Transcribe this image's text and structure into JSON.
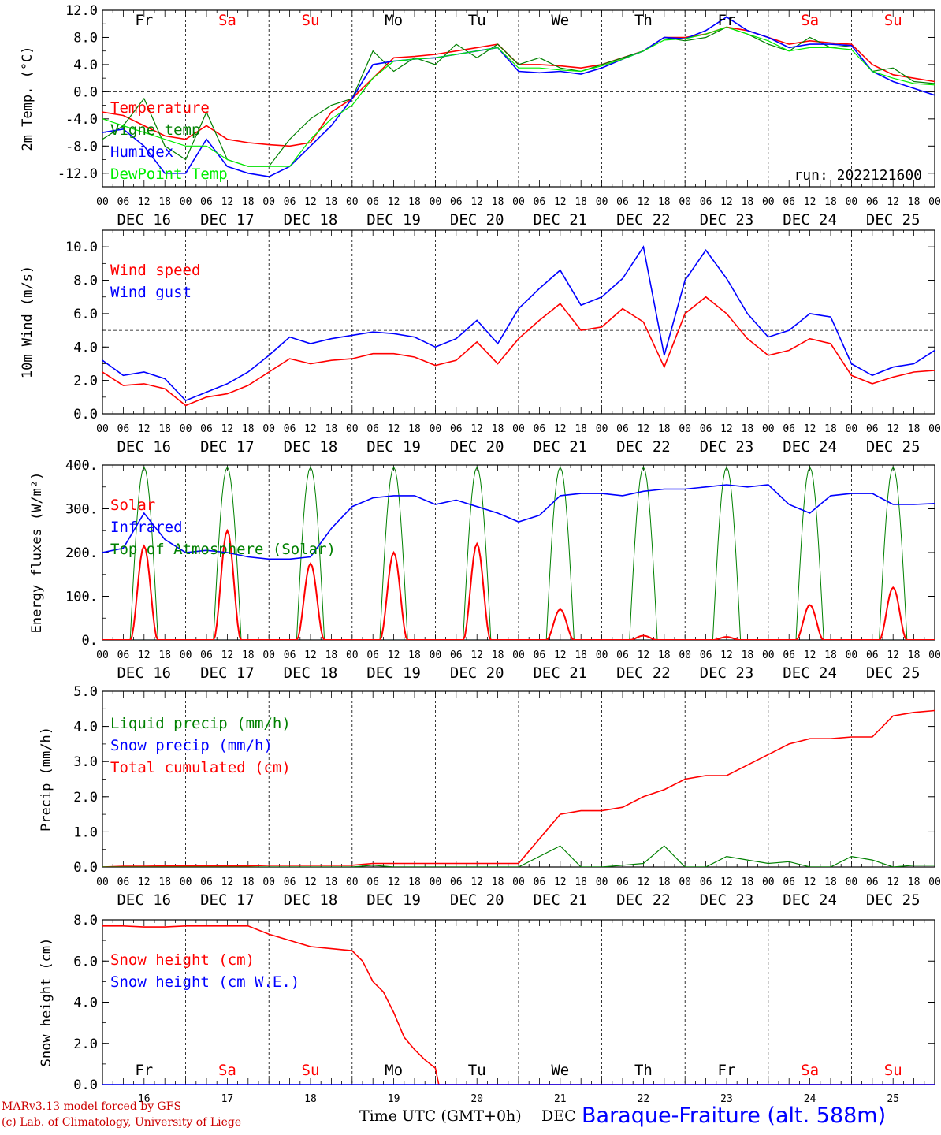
{
  "chart_data": [
    {
      "id": "temp",
      "type": "line",
      "ylabel": "2m Temp. (°C)",
      "ylim": [
        -14,
        12
      ],
      "yticks": [
        12.0,
        8.0,
        4.0,
        0.0,
        -4.0,
        -8.0,
        -12.0
      ],
      "ytick_labels": [
        "12.0",
        "8.0",
        "4.0",
        "0.0",
        "-4.0",
        "-8.0",
        "-12.0"
      ],
      "dashed_line": 0,
      "legend": [
        {
          "label": "Temperature",
          "color": "#ff0000"
        },
        {
          "label": "Vigne temp",
          "color": "#008000"
        },
        {
          "label": "Humidex",
          "color": "#0000ff"
        },
        {
          "label": "DewPoint Temp",
          "color": "#00ee00"
        }
      ],
      "annotation": "run: 2022121600",
      "series": [
        {
          "name": "Temperature",
          "color": "#ff0000",
          "x": [
            0,
            6,
            12,
            18,
            24,
            30,
            36,
            42,
            48,
            54,
            60,
            66,
            72,
            78,
            84,
            90,
            96,
            102,
            108,
            114,
            120,
            126,
            132,
            138,
            144,
            150,
            156,
            162,
            168,
            174,
            180,
            186,
            192,
            198,
            204,
            210,
            216,
            222,
            228,
            234,
            240
          ],
          "y": [
            -3,
            -3.5,
            -5,
            -6.5,
            -7,
            -5,
            -7,
            -7.5,
            -7.8,
            -8,
            -7.5,
            -3,
            -1,
            2,
            5,
            5.2,
            5.5,
            6,
            6.5,
            7,
            4,
            4,
            3.8,
            3.5,
            4,
            5,
            6,
            8,
            8,
            8.5,
            9.5,
            9,
            8,
            7,
            7.5,
            7.2,
            7,
            4,
            2.5,
            2,
            1.5
          ]
        },
        {
          "name": "Vigne temp",
          "color": "#008000",
          "x": [
            0,
            6,
            12,
            18,
            24,
            30,
            36,
            42,
            48,
            54,
            60,
            66,
            72,
            78,
            84,
            90,
            96,
            102,
            108,
            114,
            120,
            126,
            132,
            138,
            144,
            150,
            156,
            162,
            168,
            174,
            180,
            186,
            192,
            198,
            204,
            210,
            216,
            222,
            228,
            234,
            240
          ],
          "y": [
            -7,
            -5,
            -1,
            -8,
            -10,
            -3,
            -10,
            -11,
            -11,
            -7,
            -4,
            -2,
            -1,
            6,
            3,
            5,
            4,
            7,
            5,
            7,
            4,
            5,
            3.5,
            3,
            4,
            5,
            6,
            8,
            7.5,
            8,
            9.5,
            8.5,
            7,
            6,
            8,
            6.5,
            6.8,
            3,
            3.5,
            1.5,
            1.2
          ]
        },
        {
          "name": "Humidex",
          "color": "#0000ff",
          "x": [
            0,
            6,
            12,
            18,
            24,
            30,
            36,
            42,
            48,
            54,
            60,
            66,
            72,
            78,
            84,
            90,
            96,
            102,
            108,
            114,
            120,
            126,
            132,
            138,
            144,
            150,
            156,
            162,
            168,
            174,
            180,
            186,
            192,
            198,
            204,
            210,
            216,
            222,
            228,
            234,
            240
          ],
          "y": [
            -6,
            -5.5,
            -8,
            -12,
            -12,
            -7,
            -11,
            -12,
            -12.5,
            -11,
            -8,
            -5,
            -1,
            4,
            4.5,
            4.8,
            5,
            5.5,
            6,
            6.5,
            3,
            2.8,
            3,
            2.6,
            3.5,
            4.8,
            6,
            8,
            7.8,
            9,
            11,
            9,
            8,
            6.5,
            7,
            7,
            6.8,
            3,
            1.5,
            0.5,
            -0.5
          ]
        },
        {
          "name": "DewPoint Temp",
          "color": "#00ee00",
          "x": [
            0,
            6,
            12,
            18,
            24,
            30,
            36,
            42,
            48,
            54,
            60,
            66,
            72,
            78,
            84,
            90,
            96,
            102,
            108,
            114,
            120,
            126,
            132,
            138,
            144,
            150,
            156,
            162,
            168,
            174,
            180,
            186,
            192,
            198,
            204,
            210,
            216,
            222,
            228,
            234,
            240
          ],
          "y": [
            -4,
            -5,
            -6,
            -7,
            -8,
            -8,
            -10,
            -11,
            -11,
            -11,
            -7,
            -4,
            -2,
            2,
            4.5,
            4.8,
            5,
            5.5,
            6,
            6.5,
            3.5,
            3.5,
            3.2,
            3,
            3.8,
            4.8,
            6,
            7.6,
            7.8,
            8.5,
            9.5,
            8.5,
            7.5,
            6,
            6.5,
            6.5,
            6.2,
            3,
            2,
            1.2,
            1
          ]
        }
      ]
    },
    {
      "id": "wind",
      "type": "line",
      "ylabel": "10m Wind (m/s)",
      "ylim": [
        0,
        11
      ],
      "yticks": [
        10.0,
        8.0,
        6.0,
        4.0,
        2.0,
        0.0
      ],
      "ytick_labels": [
        "10.0",
        "8.0",
        "6.0",
        "4.0",
        "2.0",
        "0.0"
      ],
      "dashed_line": 5,
      "legend": [
        {
          "label": "Wind speed",
          "color": "#ff0000"
        },
        {
          "label": "Wind gust",
          "color": "#0000ff"
        }
      ],
      "series": [
        {
          "name": "Wind speed",
          "color": "#ff0000",
          "x": [
            0,
            6,
            12,
            18,
            24,
            30,
            36,
            42,
            48,
            54,
            60,
            66,
            72,
            78,
            84,
            90,
            96,
            102,
            108,
            114,
            120,
            126,
            132,
            138,
            144,
            150,
            156,
            162,
            168,
            174,
            180,
            186,
            192,
            198,
            204,
            210,
            216,
            222,
            228,
            234,
            240
          ],
          "y": [
            2.5,
            1.7,
            1.8,
            1.5,
            0.5,
            1.0,
            1.2,
            1.7,
            2.5,
            3.3,
            3.0,
            3.2,
            3.3,
            3.6,
            3.6,
            3.4,
            2.9,
            3.2,
            4.3,
            3.0,
            4.5,
            5.6,
            6.6,
            5.0,
            5.2,
            6.3,
            5.5,
            2.8,
            6.0,
            7.0,
            6.0,
            4.5,
            3.5,
            3.8,
            4.5,
            4.2,
            2.3,
            1.8,
            2.2,
            2.5,
            2.6
          ]
        },
        {
          "name": "Wind gust",
          "color": "#0000ff",
          "x": [
            0,
            6,
            12,
            18,
            24,
            30,
            36,
            42,
            48,
            54,
            60,
            66,
            72,
            78,
            84,
            90,
            96,
            102,
            108,
            114,
            120,
            126,
            132,
            138,
            144,
            150,
            156,
            162,
            168,
            174,
            180,
            186,
            192,
            198,
            204,
            210,
            216,
            222,
            228,
            234,
            240
          ],
          "y": [
            3.2,
            2.3,
            2.5,
            2.1,
            0.8,
            1.3,
            1.8,
            2.5,
            3.5,
            4.6,
            4.2,
            4.5,
            4.7,
            4.9,
            4.8,
            4.6,
            4.0,
            4.5,
            5.6,
            4.2,
            6.3,
            7.5,
            8.6,
            6.5,
            7.0,
            8.1,
            10.0,
            3.5,
            8.0,
            9.8,
            8.1,
            6.0,
            4.6,
            5.0,
            6.0,
            5.8,
            3.0,
            2.3,
            2.8,
            3.0,
            3.8
          ]
        }
      ]
    },
    {
      "id": "flux",
      "type": "line",
      "ylabel": "Energy fluxes (W/m²)",
      "ylim": [
        0,
        400
      ],
      "yticks": [
        400,
        300,
        200,
        100,
        0
      ],
      "ytick_labels": [
        "400.",
        "300.",
        "200.",
        "100.",
        "0."
      ],
      "legend": [
        {
          "label": "Solar",
          "color": "#ff0000"
        },
        {
          "label": "Infrared",
          "color": "#0000ff"
        },
        {
          "label": "Top of Atmosphere (Solar)",
          "color": "#008000"
        }
      ],
      "solar_noon_peaks": [
        215,
        250,
        175,
        200,
        220,
        70,
        10,
        7,
        80,
        120
      ],
      "toa_peak": 395,
      "day_window_hours": [
        8,
        16
      ],
      "series": [
        {
          "name": "Infrared",
          "color": "#0000ff",
          "x": [
            0,
            6,
            12,
            18,
            24,
            30,
            36,
            42,
            48,
            54,
            60,
            66,
            72,
            78,
            84,
            90,
            96,
            102,
            108,
            114,
            120,
            126,
            132,
            138,
            144,
            150,
            156,
            162,
            168,
            174,
            180,
            186,
            192,
            198,
            204,
            210,
            216,
            222,
            228,
            234,
            240
          ],
          "y": [
            200,
            210,
            290,
            230,
            200,
            205,
            200,
            190,
            185,
            185,
            190,
            255,
            305,
            325,
            330,
            330,
            310,
            320,
            305,
            290,
            270,
            285,
            330,
            335,
            335,
            330,
            340,
            345,
            345,
            350,
            355,
            350,
            355,
            310,
            290,
            330,
            335,
            335,
            310,
            310,
            312
          ]
        }
      ]
    },
    {
      "id": "precip",
      "type": "line",
      "ylabel": "Precip (mm/h)",
      "ylim": [
        0,
        5
      ],
      "yticks": [
        5.0,
        4.0,
        3.0,
        2.0,
        1.0,
        0.0
      ],
      "ytick_labels": [
        "5.0",
        "4.0",
        "3.0",
        "2.0",
        "1.0",
        "0.0"
      ],
      "legend": [
        {
          "label": "Liquid precip (mm/h)",
          "color": "#008000"
        },
        {
          "label": "Snow precip (mm/h)",
          "color": "#0000ff"
        },
        {
          "label": "Total cumulated (cm)",
          "color": "#ff0000"
        }
      ],
      "series": [
        {
          "name": "Total cumulated (cm)",
          "color": "#ff0000",
          "x": [
            0,
            6,
            12,
            18,
            24,
            30,
            36,
            42,
            48,
            54,
            60,
            66,
            72,
            78,
            84,
            90,
            96,
            102,
            108,
            114,
            120,
            126,
            132,
            138,
            144,
            150,
            156,
            162,
            168,
            174,
            180,
            186,
            192,
            198,
            204,
            210,
            216,
            222,
            228,
            234,
            240
          ],
          "y": [
            0,
            0.02,
            0.02,
            0.03,
            0.03,
            0.03,
            0.03,
            0.03,
            0.05,
            0.05,
            0.05,
            0.05,
            0.05,
            0.1,
            0.1,
            0.1,
            0.1,
            0.1,
            0.1,
            0.1,
            0.1,
            0.8,
            1.5,
            1.6,
            1.6,
            1.7,
            2.0,
            2.2,
            2.5,
            2.6,
            2.6,
            2.9,
            3.2,
            3.5,
            3.65,
            3.65,
            3.7,
            3.7,
            4.3,
            4.4,
            4.45
          ]
        },
        {
          "name": "Liquid precip (mm/h)",
          "color": "#008000",
          "x": [
            0,
            6,
            12,
            18,
            24,
            30,
            36,
            42,
            48,
            54,
            60,
            66,
            72,
            78,
            84,
            90,
            96,
            102,
            108,
            114,
            120,
            126,
            132,
            138,
            144,
            150,
            156,
            162,
            168,
            174,
            180,
            186,
            192,
            198,
            204,
            210,
            216,
            222,
            228,
            234,
            240
          ],
          "y": [
            0,
            0,
            0,
            0,
            0,
            0,
            0,
            0,
            0,
            0,
            0,
            0,
            0,
            0.05,
            0,
            0,
            0,
            0,
            0,
            0,
            0,
            0.3,
            0.6,
            0,
            0,
            0.05,
            0.1,
            0.6,
            0,
            0,
            0.3,
            0.2,
            0.1,
            0.15,
            0,
            0,
            0.3,
            0.2,
            0,
            0.05,
            0.05
          ]
        }
      ]
    },
    {
      "id": "snow",
      "type": "line",
      "ylabel": "Snow height (cm)",
      "ylim": [
        0,
        8
      ],
      "yticks": [
        8.0,
        6.0,
        4.0,
        2.0,
        0.0
      ],
      "ytick_labels": [
        "8.0",
        "6.0",
        "4.0",
        "2.0",
        "0.0"
      ],
      "legend": [
        {
          "label": "Snow height (cm)",
          "color": "#ff0000"
        },
        {
          "label": "Snow height (cm W.E.)",
          "color": "#0000ff"
        }
      ],
      "series": [
        {
          "name": "Snow height (cm)",
          "color": "#ff0000",
          "x": [
            0,
            6,
            12,
            18,
            24,
            30,
            36,
            42,
            48,
            54,
            60,
            66,
            72,
            75,
            78,
            81,
            84,
            87,
            90,
            93,
            96,
            97,
            98,
            240
          ],
          "y": [
            7.7,
            7.7,
            7.65,
            7.65,
            7.7,
            7.7,
            7.7,
            7.7,
            7.3,
            7.0,
            6.7,
            6.6,
            6.5,
            6.0,
            5.0,
            4.5,
            3.5,
            2.3,
            1.7,
            1.2,
            0.8,
            0.0,
            0.0,
            0.0
          ]
        },
        {
          "name": "Snow height (cm W.E.)",
          "color": "#0000ff",
          "x": [
            0,
            240
          ],
          "y": [
            0,
            0
          ]
        }
      ]
    }
  ],
  "day_labels_top": [
    {
      "label": "Fr",
      "color": "#000000"
    },
    {
      "label": "Sa",
      "color": "#ff0000"
    },
    {
      "label": "Su",
      "color": "#ff0000"
    },
    {
      "label": "Mo",
      "color": "#000000"
    },
    {
      "label": "Tu",
      "color": "#000000"
    },
    {
      "label": "We",
      "color": "#000000"
    },
    {
      "label": "Th",
      "color": "#000000"
    },
    {
      "label": "Fr",
      "color": "#000000"
    },
    {
      "label": "Sa",
      "color": "#ff0000"
    },
    {
      "label": "Su",
      "color": "#ff0000"
    }
  ],
  "date_labels": [
    "DEC 16",
    "DEC 17",
    "DEC 18",
    "DEC 19",
    "DEC 20",
    "DEC 21",
    "DEC 22",
    "DEC 23",
    "DEC 24",
    "DEC 25"
  ],
  "hour_labels": [
    "00",
    "06",
    "12",
    "18"
  ],
  "hour_label_end": "00",
  "day_numbers": [
    "16",
    "17",
    "18",
    "19",
    "20",
    "21",
    "22",
    "23",
    "24",
    "25"
  ],
  "footer": {
    "xlabel": "Time UTC (GMT+0h)",
    "month": "DEC",
    "credit_line1": "MARv3.13 model forced by GFS",
    "credit_line2": "(c) Lab. of Climatology, University of Liege",
    "station": "Baraque-Fraiture (alt. 588m)"
  }
}
